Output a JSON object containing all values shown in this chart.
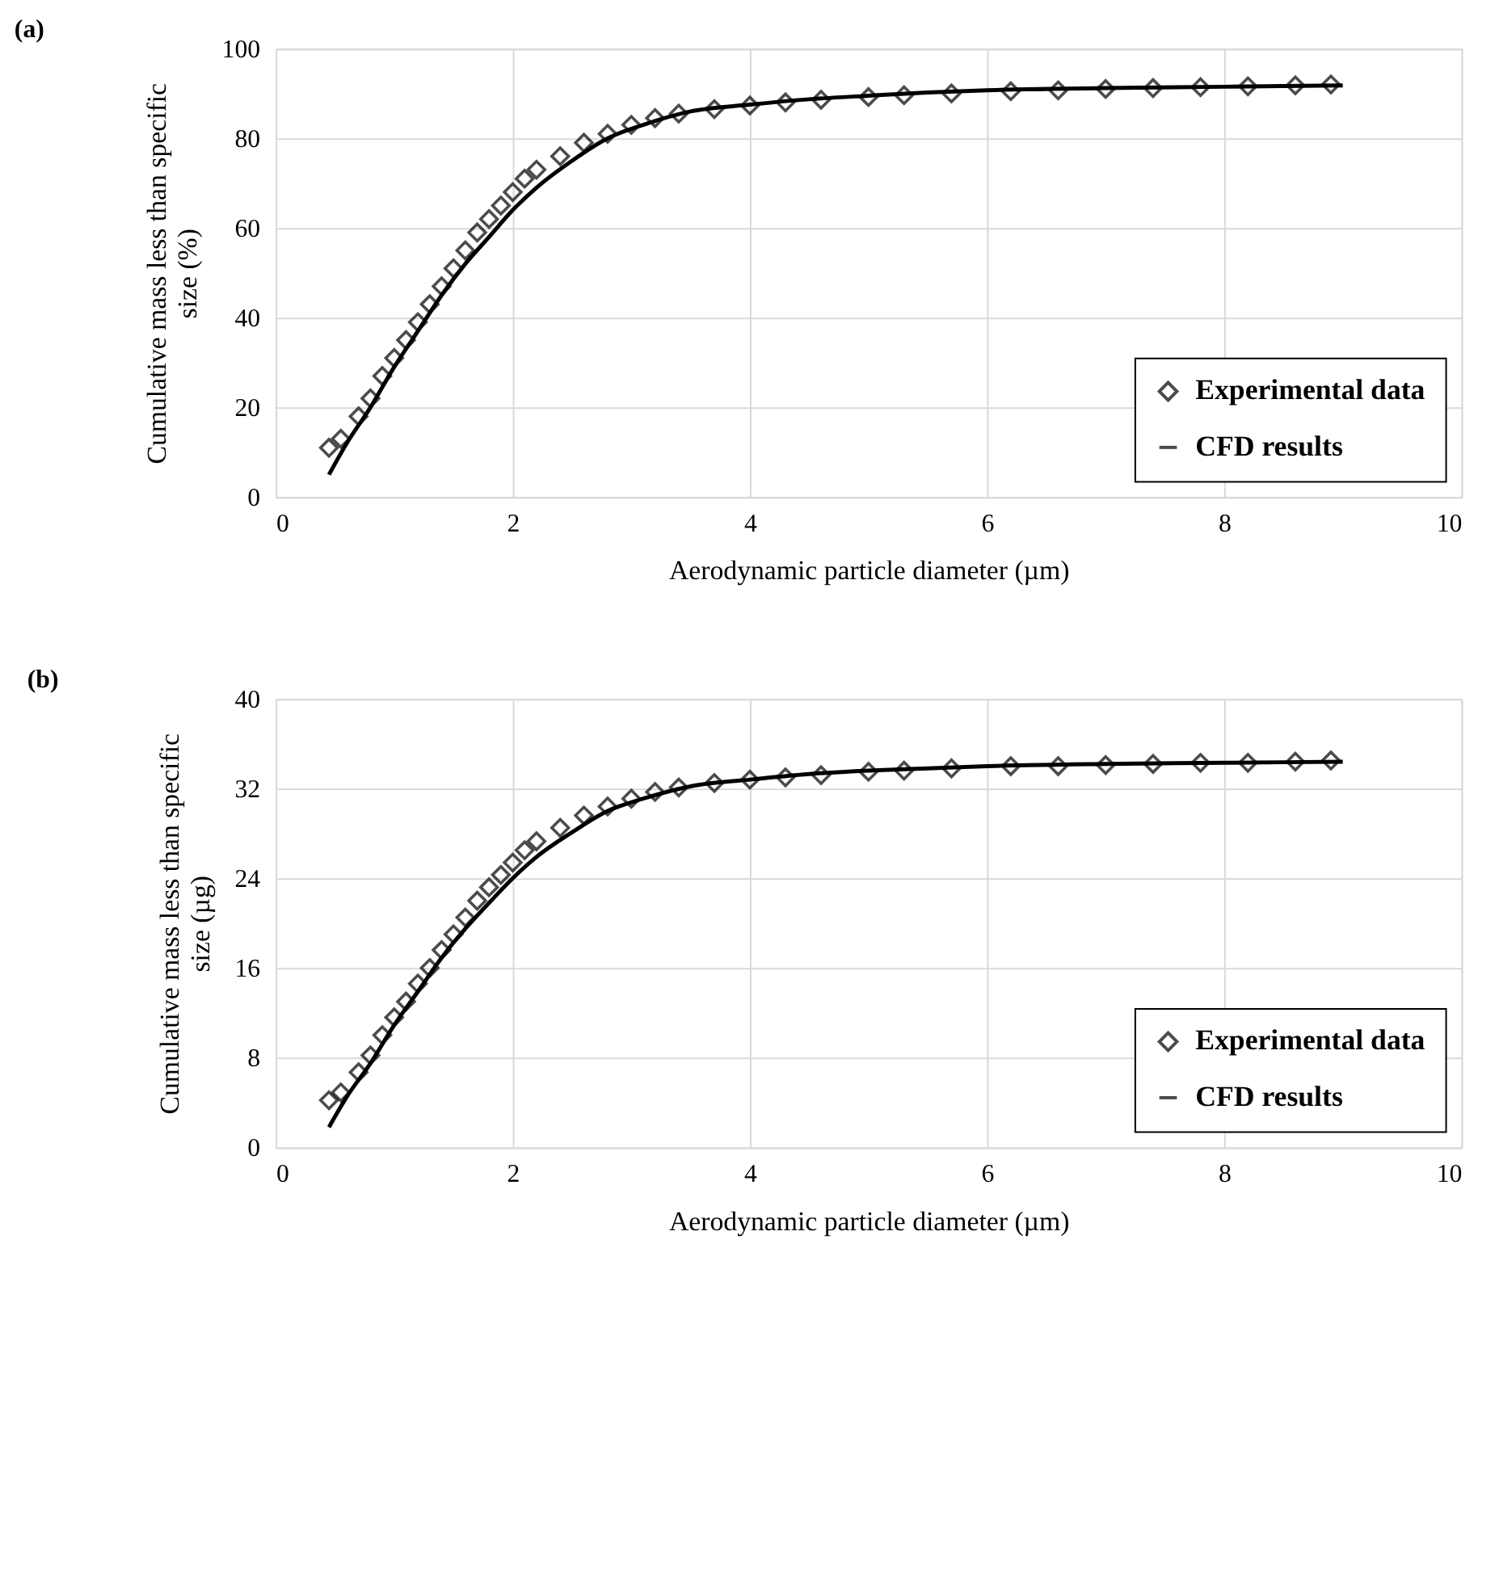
{
  "chart_data": [
    {
      "type": "scatter",
      "annotations": [
        "(a)"
      ],
      "xlabel": "Aerodynamic particle diameter (µm)",
      "ylabel": "Cumulative mass less than specific size (%)",
      "xlim": [
        0,
        10
      ],
      "xticks": [
        0,
        2,
        4,
        6,
        8,
        10
      ],
      "ylim": [
        0,
        100
      ],
      "yticks": [
        0,
        20,
        40,
        60,
        80,
        100
      ],
      "grid": true,
      "legend": "bottom right",
      "series": [
        {
          "name": "Experimental data",
          "marker": "diamond",
          "color": "#000000",
          "x": [
            0.45,
            0.55,
            0.7,
            0.8,
            0.9,
            1.0,
            1.1,
            1.2,
            1.3,
            1.4,
            1.5,
            1.6,
            1.7,
            1.8,
            1.9,
            2.0,
            2.1,
            2.2,
            2.4,
            2.6,
            2.8,
            3.0,
            3.2,
            3.4,
            3.7,
            4.0,
            4.3,
            4.6,
            5.0,
            5.3,
            5.7,
            6.2,
            6.6,
            7.0,
            7.4,
            7.8,
            8.2,
            8.6,
            8.9
          ],
          "values": [
            11,
            13,
            18,
            22,
            27,
            31,
            35,
            39,
            43,
            47,
            51,
            55,
            59,
            62,
            65,
            68,
            71,
            73,
            76,
            79,
            81,
            83,
            84.5,
            85.5,
            86.5,
            87.3,
            88,
            88.6,
            89.2,
            89.6,
            90,
            90.5,
            90.7,
            91,
            91.2,
            91.4,
            91.6,
            91.8,
            92
          ]
        },
        {
          "name": "CFD results",
          "type": "line",
          "marker": "none",
          "line_style": "solid",
          "color": "#000000",
          "x": [
            0.45,
            0.6,
            0.8,
            1.0,
            1.2,
            1.4,
            1.6,
            1.8,
            2.0,
            2.2,
            2.5,
            2.8,
            3.1,
            3.5,
            4.0,
            4.5,
            5.0,
            5.5,
            6.0,
            7.0,
            8.0,
            9.0
          ],
          "values": [
            5,
            12,
            20,
            29,
            37,
            45,
            52,
            58,
            64,
            69,
            75,
            80,
            83,
            86,
            87.5,
            88.7,
            89.5,
            90.2,
            90.7,
            91.2,
            91.5,
            91.8
          ]
        }
      ]
    },
    {
      "type": "scatter",
      "annotations": [
        "(b)"
      ],
      "xlabel": "Aerodynamic particle diameter (µm)",
      "ylabel": "Cumulative mass less than specific size (µg)",
      "xlim": [
        0,
        10
      ],
      "xticks": [
        0,
        2,
        4,
        6,
        8,
        10
      ],
      "ylim": [
        0,
        40
      ],
      "yticks": [
        0,
        8,
        16,
        24,
        32,
        40
      ],
      "grid": true,
      "legend": "bottom right",
      "series": [
        {
          "name": "Experimental data",
          "marker": "diamond",
          "color": "#000000",
          "x": [
            0.45,
            0.55,
            0.7,
            0.8,
            0.9,
            1.0,
            1.1,
            1.2,
            1.3,
            1.4,
            1.5,
            1.6,
            1.7,
            1.8,
            1.9,
            2.0,
            2.1,
            2.2,
            2.4,
            2.6,
            2.8,
            3.0,
            3.2,
            3.4,
            3.7,
            4.0,
            4.3,
            4.6,
            5.0,
            5.3,
            5.7,
            6.2,
            6.6,
            7.0,
            7.4,
            7.8,
            8.2,
            8.6,
            8.9
          ],
          "values": [
            4.2,
            4.9,
            6.7,
            8.2,
            10,
            11.6,
            13,
            14.6,
            16,
            17.6,
            19,
            20.5,
            22,
            23.2,
            24.3,
            25.4,
            26.5,
            27.3,
            28.5,
            29.6,
            30.4,
            31.1,
            31.7,
            32.1,
            32.5,
            32.8,
            33,
            33.2,
            33.5,
            33.6,
            33.8,
            34,
            34,
            34.1,
            34.2,
            34.3,
            34.3,
            34.4,
            34.5
          ]
        },
        {
          "name": "CFD results",
          "type": "line",
          "marker": "none",
          "line_style": "solid",
          "color": "#000000",
          "x": [
            0.45,
            0.6,
            0.8,
            1.0,
            1.2,
            1.4,
            1.6,
            1.8,
            2.0,
            2.2,
            2.5,
            2.8,
            3.1,
            3.5,
            4.0,
            4.5,
            5.0,
            5.5,
            6.0,
            7.0,
            8.0,
            9.0
          ],
          "values": [
            1.8,
            4.5,
            7.5,
            10.9,
            13.9,
            16.9,
            19.5,
            21.8,
            24,
            25.9,
            28.1,
            30,
            31.1,
            32.2,
            32.8,
            33.3,
            33.6,
            33.8,
            34,
            34.2,
            34.3,
            34.4
          ]
        }
      ]
    }
  ]
}
